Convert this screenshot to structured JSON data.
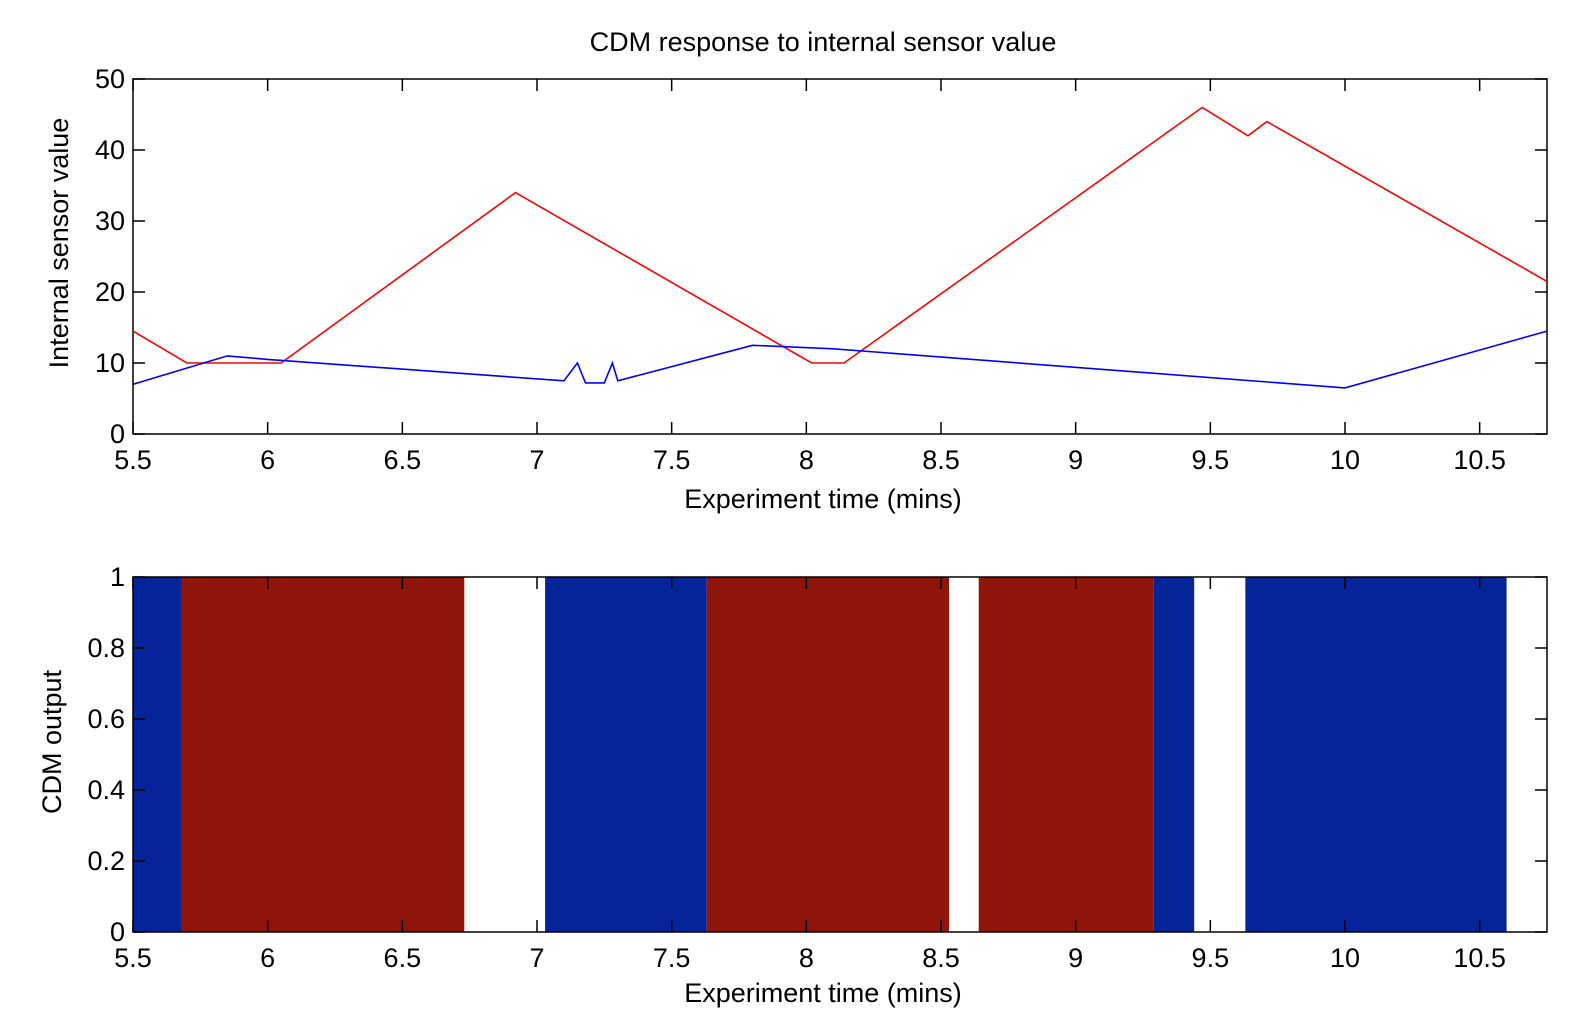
{
  "chart_data": [
    {
      "type": "line",
      "title": "CDM response to internal sensor value",
      "xlabel": "Experiment time (mins)",
      "ylabel": "Internal sensor value",
      "xlim": [
        5.5,
        10.75
      ],
      "ylim": [
        0,
        50
      ],
      "xticks": [
        "5.5",
        "6",
        "6.5",
        "7",
        "7.5",
        "8",
        "8.5",
        "9",
        "9.5",
        "10",
        "10.5"
      ],
      "yticks": [
        "0",
        "10",
        "20",
        "30",
        "40",
        "50"
      ],
      "grid": false,
      "series": [
        {
          "color": "#ff0000",
          "x": [
            5.5,
            5.7,
            6.05,
            6.92,
            8.02,
            8.14,
            9.47,
            9.64,
            9.71,
            10.75
          ],
          "y": [
            14.5,
            10,
            10,
            34,
            10,
            10,
            46,
            42,
            44,
            21.5
          ]
        },
        {
          "color": "#0000ff",
          "x": [
            5.5,
            5.85,
            6.0,
            7.1,
            7.15,
            7.18,
            7.25,
            7.28,
            7.3,
            7.8,
            8.1,
            10.0,
            10.75
          ],
          "y": [
            7,
            11,
            10.5,
            7.5,
            10,
            7.2,
            7.2,
            10,
            7.5,
            12.5,
            12,
            6.5,
            14.5
          ]
        }
      ]
    },
    {
      "type": "bar",
      "title": "",
      "xlabel": "Experiment time (mins)",
      "ylabel": "CDM output",
      "xlim": [
        5.5,
        10.75
      ],
      "ylim": [
        0,
        1
      ],
      "xticks": [
        "5.5",
        "6",
        "6.5",
        "7",
        "7.5",
        "8",
        "8.5",
        "9",
        "9.5",
        "10",
        "10.5"
      ],
      "yticks": [
        "0",
        "0.2",
        "0.4",
        "0.6",
        "0.8",
        "1"
      ],
      "grid": false,
      "colors": {
        "blue": "#05249a",
        "red": "#8f150b"
      },
      "segments": [
        {
          "start": 5.5,
          "end": 5.68,
          "color": "blue",
          "value": 1
        },
        {
          "start": 5.68,
          "end": 6.73,
          "color": "red",
          "value": 1
        },
        {
          "start": 7.03,
          "end": 7.63,
          "color": "blue",
          "value": 1
        },
        {
          "start": 7.63,
          "end": 8.53,
          "color": "red",
          "value": 1
        },
        {
          "start": 8.64,
          "end": 9.29,
          "color": "red",
          "value": 1
        },
        {
          "start": 9.29,
          "end": 9.44,
          "color": "blue",
          "value": 1
        },
        {
          "start": 9.63,
          "end": 10.6,
          "color": "blue",
          "value": 1
        }
      ]
    }
  ]
}
